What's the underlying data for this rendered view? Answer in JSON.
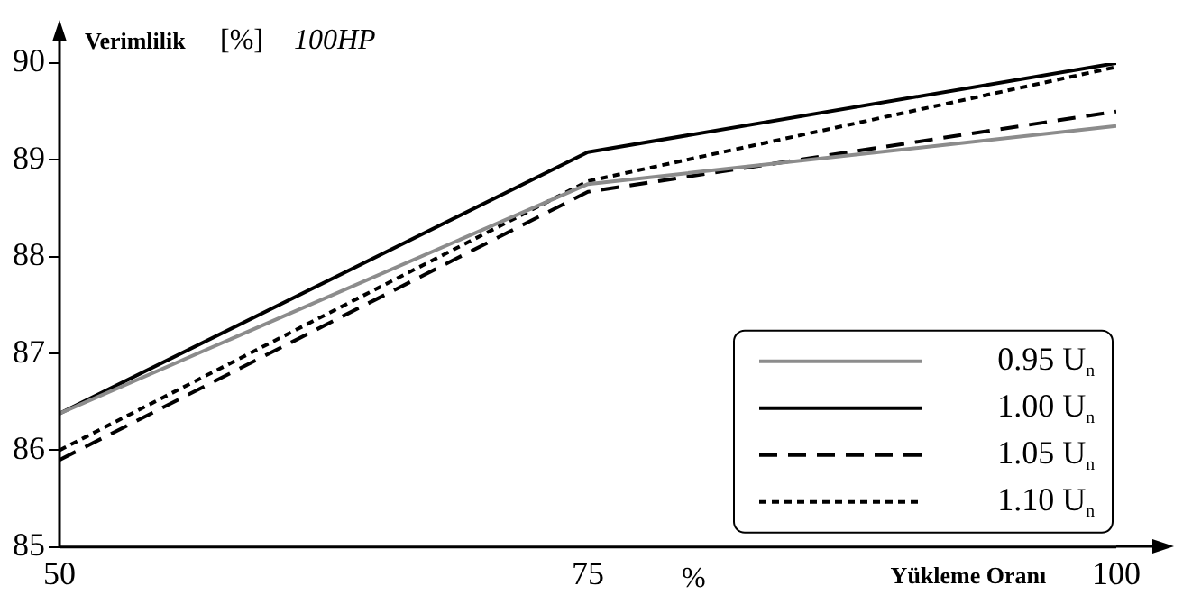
{
  "chart_data": {
    "type": "line",
    "title": "100HP",
    "ylabel": "Verimlilik [%]",
    "xlabel": "Yükleme Oranı",
    "annotations": [
      "%"
    ],
    "x": [
      50,
      75,
      100
    ],
    "xlim": [
      50,
      100
    ],
    "xticks": [
      50,
      75,
      100
    ],
    "ylim": [
      85,
      90
    ],
    "yticks": [
      85,
      86,
      87,
      88,
      89,
      90
    ],
    "grid": false,
    "legend": "bottom right",
    "marker": "none",
    "series": [
      {
        "name": "0.95 U$_{n}$",
        "color": "#8c8c8c",
        "line_style": "solid",
        "values": [
          86.38,
          88.75,
          89.35
        ]
      },
      {
        "name": "1.00 U$_{n}$",
        "color": "#000000",
        "line_style": "solid",
        "values": [
          86.38,
          89.08,
          90.0
        ]
      },
      {
        "name": "1.05 U$_{n}$",
        "color": "#000000",
        "line_style": "dashed",
        "values": [
          85.9,
          88.67,
          89.5
        ]
      },
      {
        "name": "1.10 U$_{n}$",
        "color": "#000000",
        "line_style": "dotted",
        "values": [
          86.0,
          88.78,
          89.96
        ]
      }
    ]
  }
}
